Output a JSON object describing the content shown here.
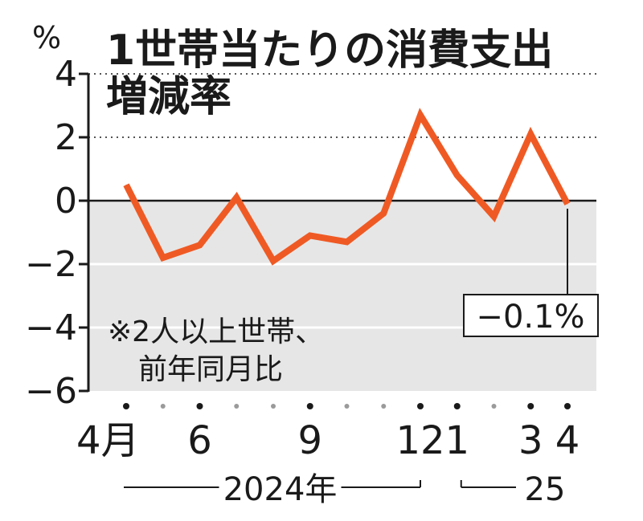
{
  "chart_data": {
    "type": "line",
    "title": "1世帯当たりの消費支出増減率",
    "title_lines": [
      "1世帯当たりの消費支出",
      "増減率"
    ],
    "ylabel": "%",
    "ylim": [
      -6,
      4
    ],
    "yticks": [
      4,
      2,
      0,
      -2,
      -4,
      -6
    ],
    "ytick_labels": [
      "4",
      "2",
      "0",
      "−2",
      "−4",
      "−6"
    ],
    "grid": "dotted lines at 2 and 4, solid white lines at -2 and -4, shaded area below 0",
    "x": [
      "2024-04",
      "2024-05",
      "2024-06",
      "2024-07",
      "2024-08",
      "2024-09",
      "2024-10",
      "2024-11",
      "2024-12",
      "2025-01",
      "2025-02",
      "2025-03",
      "2025-04"
    ],
    "values": [
      0.5,
      -1.8,
      -1.4,
      0.1,
      -1.9,
      -1.1,
      -1.3,
      -0.4,
      2.7,
      0.8,
      -0.5,
      2.1,
      -0.1
    ],
    "xtick_labels": [
      {
        "label": "4月",
        "index": 0
      },
      {
        "label": "6",
        "index": 2
      },
      {
        "label": "9",
        "index": 5
      },
      {
        "label": "12",
        "index": 8
      },
      {
        "label": "1",
        "index": 9
      },
      {
        "label": "3",
        "index": 11
      },
      {
        "label": "4",
        "index": 12
      }
    ],
    "year_groups": [
      {
        "label": "2024年",
        "start": 0,
        "end": 8
      },
      {
        "label": "25",
        "start": 9,
        "end": 12
      }
    ],
    "note_lines": [
      "※2人以上世帯、",
      "前年同月比"
    ],
    "callout": {
      "label": "−0.1%",
      "index": 12
    },
    "colors": {
      "line": "#ef5a24",
      "shade": "#e6e6e6",
      "text": "#1a1a1a",
      "dot_major": "#1a1a1a",
      "dot_minor": "#9a9a9a"
    }
  }
}
